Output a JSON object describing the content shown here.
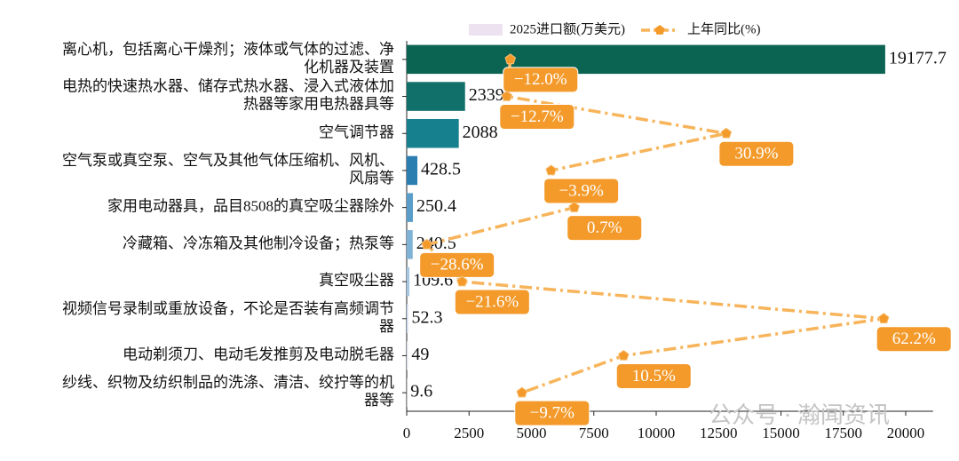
{
  "chart_data": {
    "type": "barh_line",
    "categories": [
      "离心机，包括离心干燥剂；液体或气体的过滤、净\n化机器及装置",
      "电热的快速热水器、储存式热水器、浸入式液体加\n热器等家用电热器具等",
      "空气调节器",
      "空气泵或真空泵、空气及其他气体压缩机、风机、\n风扇等",
      "家用电动器具，品目8508的真空吸尘器除外",
      "冷藏箱、冷冻箱及其他制冷设备；热泵等",
      "真空吸尘器",
      "视频信号录制或重放设备，不论是否装有高频调节\n器",
      "电动剃须刀、电动毛发推剪及电动脱毛器",
      "纱线、织物及纺织制品的洗涤、清洁、绞拧等的机\n器等"
    ],
    "series": [
      {
        "name": "2025进口额(万美元)",
        "type": "bar",
        "color": "#ece2f0",
        "colors": [
          "#0b6452",
          "#11706a",
          "#16808f",
          "#2b7fb0",
          "#5b9dc9",
          "#80b2d6",
          "#a6c6e2",
          "#c6d5ea",
          "#dde0ee",
          "#ece2f0"
        ],
        "values": [
          19177.7,
          2339.0,
          2088.0,
          428.5,
          250.4,
          240.5,
          109.6,
          52.3,
          49.0,
          9.6
        ]
      },
      {
        "name": "上年同比(%)",
        "type": "line",
        "axis": "x2",
        "color": "#f7b45a",
        "label_color": "#f39a2b",
        "values": [
          -12.0,
          -12.7,
          30.9,
          -3.9,
          0.7,
          -28.6,
          -21.6,
          62.2,
          10.5,
          -9.7
        ],
        "value_labels": [
          "−12.0%",
          "−12.7%",
          "30.9%",
          "−3.9%",
          "0.7%",
          "−28.6%",
          "−21.6%",
          "62.2%",
          "10.5%",
          "−9.7%"
        ]
      }
    ],
    "xlim": [
      0,
      21095
    ],
    "xticks": [
      0,
      2500,
      5000,
      7500,
      10000,
      12500,
      15000,
      17500,
      20000
    ],
    "x2lim": [
      -32.6,
      72.0
    ],
    "watermark": "公众号 · 瀚闻资讯"
  }
}
